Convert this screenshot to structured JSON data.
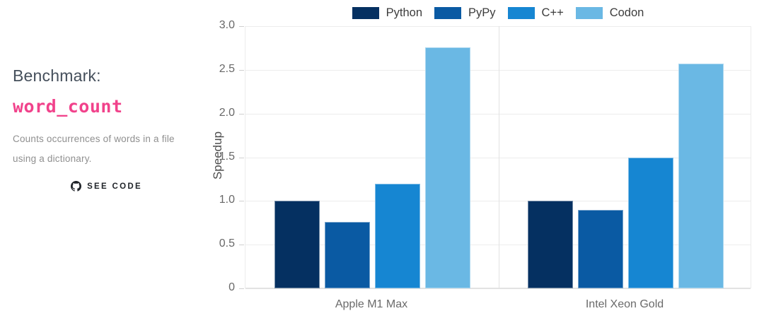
{
  "sidebar": {
    "title": "Benchmark:",
    "benchmark_name": "word_count",
    "description": "Counts occurrences of words in a file using a dictionary.",
    "see_code_label": "SEE CODE",
    "accent_color": "#f1428b",
    "title_color": "#454f5b"
  },
  "chart_data": {
    "type": "bar",
    "categories": [
      "Apple M1 Max",
      "Intel Xeon Gold"
    ],
    "series": [
      {
        "name": "Python",
        "color": "#053061",
        "values": [
          1.0,
          1.0
        ]
      },
      {
        "name": "PyPy",
        "color": "#0a5aa3",
        "values": [
          0.76,
          0.9
        ]
      },
      {
        "name": "C++",
        "color": "#1686d2",
        "values": [
          1.2,
          1.5
        ]
      },
      {
        "name": "Codon",
        "color": "#6ab8e4",
        "values": [
          2.76,
          2.57
        ]
      }
    ],
    "title": "",
    "xlabel": "",
    "ylabel": "Speedup",
    "ylim": [
      0,
      3.0
    ],
    "ytick_step": 0.5,
    "ytick_labels": [
      "0",
      "0.5",
      "1.0",
      "1.5",
      "2.0",
      "2.5",
      "3.0"
    ],
    "grid": true,
    "legend_position": "top-center"
  }
}
